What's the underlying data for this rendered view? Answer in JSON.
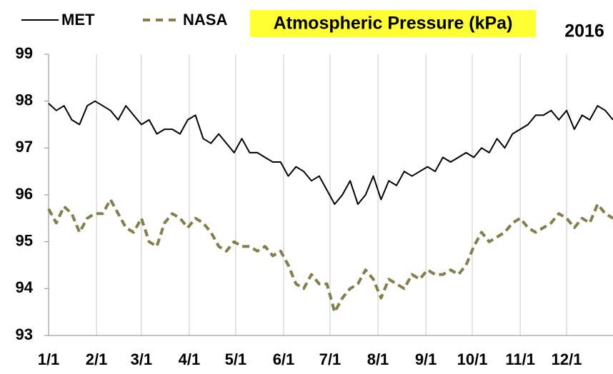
{
  "chart_data": {
    "type": "line",
    "title": "Atmospheric Pressure (kPa)",
    "annotation": "2016",
    "x": [
      1,
      6,
      11,
      16,
      21,
      26,
      31,
      36,
      41,
      46,
      51,
      56,
      61,
      66,
      71,
      76,
      81,
      86,
      91,
      96,
      101,
      106,
      111,
      116,
      121,
      126,
      131,
      136,
      141,
      146,
      151,
      156,
      161,
      166,
      171,
      176,
      181,
      186,
      191,
      196,
      201,
      206,
      211,
      216,
      221,
      226,
      231,
      236,
      241,
      246,
      251,
      256,
      261,
      266,
      271,
      276,
      281,
      286,
      291,
      296,
      301,
      306,
      311,
      316,
      321,
      326,
      331,
      336,
      341,
      346,
      351,
      356,
      361,
      366
    ],
    "series": [
      {
        "name": "MET",
        "color": "#000000",
        "dashed": false,
        "values": [
          97.95,
          97.8,
          97.9,
          97.6,
          97.5,
          97.9,
          98.0,
          97.9,
          97.8,
          97.6,
          97.9,
          97.7,
          97.5,
          97.6,
          97.3,
          97.4,
          97.4,
          97.3,
          97.6,
          97.7,
          97.2,
          97.1,
          97.3,
          97.1,
          96.9,
          97.2,
          96.9,
          96.9,
          96.8,
          96.7,
          96.7,
          96.4,
          96.6,
          96.5,
          96.3,
          96.4,
          96.1,
          95.8,
          96.0,
          96.3,
          95.8,
          96.0,
          96.4,
          95.9,
          96.3,
          96.2,
          96.5,
          96.4,
          96.5,
          96.6,
          96.5,
          96.8,
          96.7,
          96.8,
          96.9,
          96.8,
          97.0,
          96.9,
          97.2,
          97.0,
          97.3,
          97.4,
          97.5,
          97.7,
          97.7,
          97.8,
          97.6,
          97.8,
          97.4,
          97.7,
          97.6,
          97.9,
          97.8,
          97.6
        ]
      },
      {
        "name": "NASA",
        "color": "#857d4a",
        "dashed": true,
        "values": [
          95.7,
          95.4,
          95.75,
          95.6,
          95.2,
          95.5,
          95.6,
          95.6,
          95.9,
          95.6,
          95.3,
          95.2,
          95.5,
          95.0,
          94.9,
          95.4,
          95.6,
          95.5,
          95.3,
          95.5,
          95.4,
          95.2,
          94.9,
          94.8,
          95.0,
          94.9,
          94.9,
          94.8,
          94.9,
          94.7,
          94.8,
          94.5,
          94.1,
          94.0,
          94.3,
          94.1,
          94.1,
          93.5,
          93.8,
          94.0,
          94.1,
          94.4,
          94.2,
          93.8,
          94.2,
          94.1,
          94.0,
          94.3,
          94.2,
          94.4,
          94.3,
          94.3,
          94.4,
          94.3,
          94.5,
          94.9,
          95.2,
          95.0,
          95.1,
          95.2,
          95.4,
          95.5,
          95.3,
          95.2,
          95.3,
          95.4,
          95.6,
          95.5,
          95.3,
          95.5,
          95.4,
          95.8,
          95.6,
          95.5
        ]
      }
    ],
    "xlim": [
      1,
      366
    ],
    "xticks": [
      {
        "value": 1,
        "label": "1/1"
      },
      {
        "value": 32,
        "label": "2/1"
      },
      {
        "value": 61,
        "label": "3/1"
      },
      {
        "value": 92,
        "label": "4/1"
      },
      {
        "value": 122,
        "label": "5/1"
      },
      {
        "value": 153,
        "label": "6/1"
      },
      {
        "value": 183,
        "label": "7/1"
      },
      {
        "value": 214,
        "label": "8/1"
      },
      {
        "value": 245,
        "label": "9/1"
      },
      {
        "value": 275,
        "label": "10/1"
      },
      {
        "value": 306,
        "label": "11/1"
      },
      {
        "value": 336,
        "label": "12/1"
      }
    ],
    "ylim": [
      93,
      99
    ],
    "yticks": [
      93,
      94,
      95,
      96,
      97,
      98,
      99
    ],
    "grid": "x",
    "legend": "top-left"
  }
}
